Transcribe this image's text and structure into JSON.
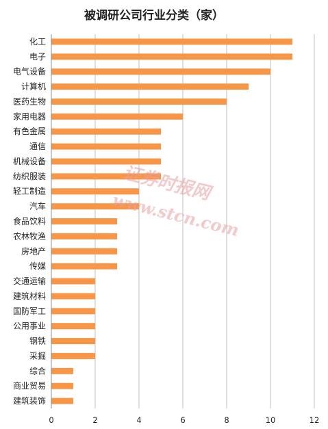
{
  "chart_data": {
    "type": "bar",
    "orientation": "horizontal",
    "title": "被调研公司行业分类（家）",
    "xlabel": "",
    "ylabel": "",
    "categories": [
      "化工",
      "电子",
      "电气设备",
      "计算机",
      "医药生物",
      "家用电器",
      "有色金属",
      "通信",
      "机械设备",
      "纺织服装",
      "轻工制造",
      "汽车",
      "食品饮料",
      "农林牧渔",
      "房地产",
      "传媒",
      "交通运输",
      "建筑材料",
      "国防军工",
      "公用事业",
      "钢铁",
      "采掘",
      "综合",
      "商业贸易",
      "建筑装饰"
    ],
    "values": [
      11,
      11,
      10,
      9,
      8,
      6,
      5,
      5,
      5,
      5,
      4,
      4,
      3,
      3,
      3,
      3,
      2,
      2,
      2,
      2,
      2,
      2,
      1,
      1,
      1
    ],
    "xlim": [
      0,
      12
    ],
    "x_ticks": [
      "0",
      "2",
      "4",
      "6",
      "8",
      "10",
      "12"
    ],
    "grid": true,
    "bar_color": "#F79646",
    "grid_color": "#BFBFBF"
  },
  "watermark": {
    "cn": "证券时报网",
    "url": "www.stcn.com"
  }
}
